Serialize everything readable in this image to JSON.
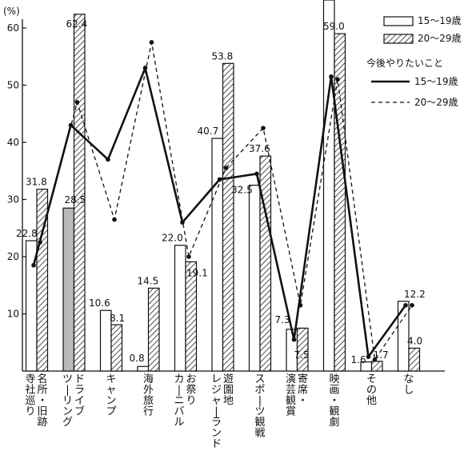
{
  "chart_data": {
    "type": "bar",
    "ylabel": "(%)",
    "ylim": [
      0,
      65
    ],
    "yticks": [
      10,
      20,
      30,
      40,
      50,
      60
    ],
    "categories": [
      "寺社巡り・名所・旧跡",
      "ドライブ・ツーリング",
      "キャンプ",
      "海外旅行",
      "カーニバル・お祭り",
      "遊園地・レジャーランド",
      "スポーツ観戦",
      "演芸観賞・寄席",
      "映画・観劇",
      "その他",
      "なし"
    ],
    "category_labels": [
      [
        "寺社巡り",
        "名所・旧跡"
      ],
      [
        "ツーリング",
        "ドライブ"
      ],
      [
        "キャンプ"
      ],
      [
        "海外旅行"
      ],
      [
        "カーニバル",
        "お祭り"
      ],
      [
        "レジャーランド",
        "遊園地"
      ],
      [
        "スポーツ観戦"
      ],
      [
        "演芸観賞",
        "寄席・"
      ],
      [
        "映画・観劇"
      ],
      [
        "その他"
      ],
      [
        "なし"
      ]
    ],
    "series": [
      {
        "name": "15～19歳",
        "style": "open-bar",
        "values": [
          22.8,
          28.5,
          10.6,
          0.8,
          22.0,
          40.7,
          32.5,
          7.3,
          66.0,
          1.6,
          12.2
        ],
        "value_labels": [
          "22.8",
          "28.5",
          "10.6",
          "0.8",
          "22.0",
          "40.7",
          "32.5",
          "7.3",
          "",
          "1.6",
          "12.2"
        ]
      },
      {
        "name": "20～29歳",
        "style": "hatched-bar",
        "values": [
          31.8,
          62.4,
          8.1,
          14.5,
          19.1,
          53.8,
          37.6,
          7.5,
          59.0,
          1.7,
          4.0
        ],
        "value_labels": [
          "31.8",
          "62.4",
          "8.1",
          "14.5",
          "19.1",
          "53.8",
          "37.6",
          "7.5",
          "59.0",
          "1.7",
          "4.0"
        ]
      }
    ],
    "line_group_title": "今後やりたいこと",
    "line_series": [
      {
        "name": "15～19歳",
        "style": "solid",
        "values": [
          18.5,
          43.0,
          37.0,
          53.0,
          26.0,
          33.5,
          34.5,
          5.5,
          51.5,
          2.5,
          11.5
        ]
      },
      {
        "name": "20～29歳",
        "style": "dashed",
        "values": [
          22.5,
          47.0,
          26.5,
          57.5,
          20.0,
          35.5,
          42.5,
          11.5,
          51.0,
          2.0,
          11.5
        ]
      }
    ],
    "colors": {
      "bar_fill": "#ffffff",
      "highlight_bar_fill": "#b9b9b9",
      "ink": "#111111"
    },
    "legend_position": "top-right"
  }
}
